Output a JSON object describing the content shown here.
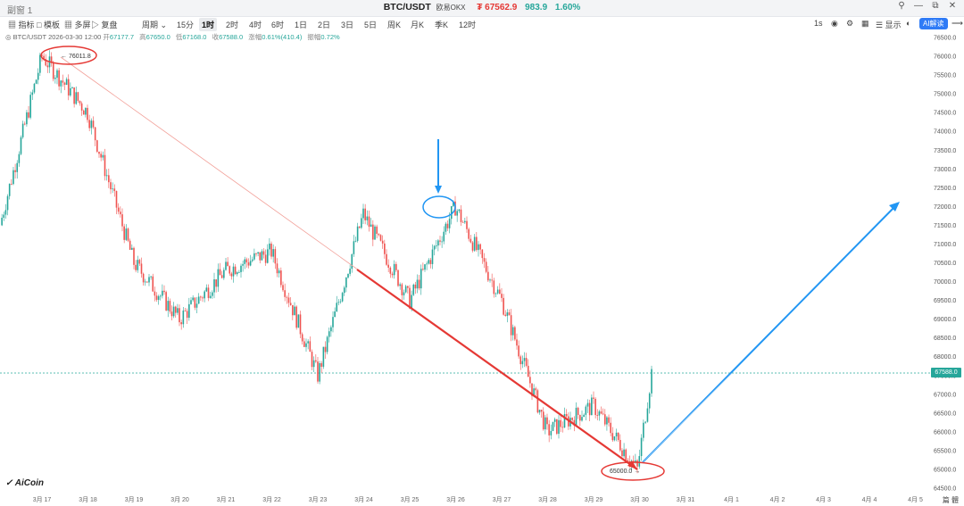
{
  "window": {
    "tab_title": "副窗 1"
  },
  "ticker": {
    "symbol": "BTC/USDT",
    "exchange": "欧易OKX",
    "price": "₮ 67562.9",
    "change": "983.9",
    "change_pct": "1.60%"
  },
  "toolbar": {
    "items": [
      "指标",
      "模板",
      "多屏",
      "复盘",
      "周期",
      "15分",
      "1时",
      "2时",
      "4时",
      "6时",
      "1日",
      "2日",
      "3日",
      "5日",
      "周K",
      "月K",
      "季K",
      "12时"
    ],
    "active": "1时",
    "right_items": [
      "1s",
      "显示"
    ],
    "ai_label": "AI解读"
  },
  "infobar": {
    "pair": "BTC/USDT",
    "time": "2026-03-30 12:00",
    "open_label": "开",
    "open": "67177.7",
    "high_label": "高",
    "high": "67650.0",
    "low_label": "低",
    "low": "67168.0",
    "close_label": "收",
    "close": "67588.0",
    "chg_label": "涨幅",
    "chg": "0.61%(410.4)",
    "amp_label": "振幅",
    "amp": "0.72%"
  },
  "yaxis_ticks": [
    "76500.0",
    "76000.0",
    "75500.0",
    "75000.0",
    "74500.0",
    "74000.0",
    "73500.0",
    "73000.0",
    "72500.0",
    "72000.0",
    "71500.0",
    "71000.0",
    "70500.0",
    "70000.0",
    "69500.0",
    "69000.0",
    "68500.0",
    "68000.0",
    "67500.0",
    "67000.0",
    "66500.0",
    "66000.0",
    "65500.0",
    "65000.0",
    "64500.0"
  ],
  "xaxis_ticks": [
    "3月 17",
    "3月 18",
    "3月 19",
    "3月 20",
    "3月 21",
    "3月 22",
    "3月 23",
    "3月 24",
    "3月 25",
    "3月 26",
    "3月 27",
    "3月 28",
    "3月 29",
    "3月 30",
    "3月 31",
    "4月 1",
    "4月 2",
    "4月 3",
    "4月 4",
    "4月 5"
  ],
  "current_price_tag": "67588.0",
  "annotations": {
    "high_label": "← 76011.8",
    "low_label": "65000.0 →"
  },
  "logo": "AiCoin",
  "corner_text": "篇 體",
  "colors": {
    "up": "#26a69a",
    "down": "#ef5350",
    "trend_red": "#e53935",
    "trend_blue": "#2196f3",
    "accent": "#2f7bf6"
  },
  "chart_data": {
    "type": "candlestick",
    "y_range": [
      64500,
      76500
    ],
    "key_levels": {
      "high": 76011.8,
      "low": 65000.0,
      "last": 67588.0
    },
    "path_points": [
      [
        "3月 16",
        71500
      ],
      [
        "3月 17",
        76011.8
      ],
      [
        "3月 18",
        74500
      ],
      [
        "3月 19",
        70500
      ],
      [
        "3月 20",
        69000
      ],
      [
        "3月 21",
        70300
      ],
      [
        "3月 22",
        70800
      ],
      [
        "3月 23",
        67500
      ],
      [
        "3月 24",
        71800
      ],
      [
        "3月 25",
        69500
      ],
      [
        "3月 26",
        72000
      ],
      [
        "3月 27",
        69500
      ],
      [
        "3月 28",
        66000
      ],
      [
        "3月 29",
        66700
      ],
      [
        "3月 30",
        65000
      ],
      [
        "3月 30",
        67588
      ]
    ]
  }
}
